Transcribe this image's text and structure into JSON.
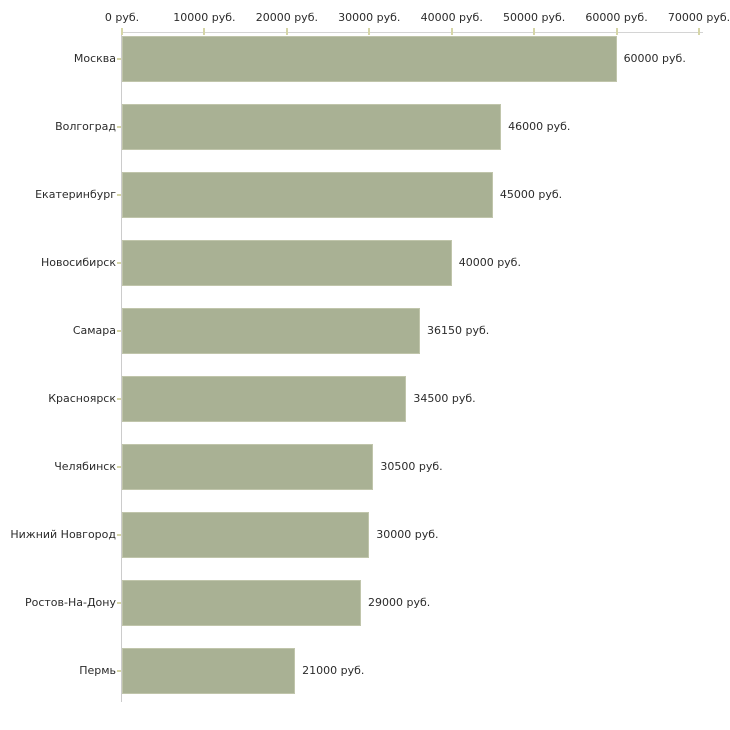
{
  "chart_data": {
    "type": "bar",
    "orientation": "horizontal",
    "title": "",
    "xlabel": "",
    "ylabel": "",
    "xlim": [
      0,
      70000
    ],
    "grid": false,
    "legend": null,
    "axis_position": "top",
    "unit_suffix": " руб.",
    "x_ticks": [
      {
        "value": 0,
        "label": "0 руб."
      },
      {
        "value": 10000,
        "label": "10000 руб."
      },
      {
        "value": 20000,
        "label": "20000 руб."
      },
      {
        "value": 30000,
        "label": "30000 руб."
      },
      {
        "value": 40000,
        "label": "40000 руб."
      },
      {
        "value": 50000,
        "label": "50000 руб."
      },
      {
        "value": 60000,
        "label": "60000 руб."
      },
      {
        "value": 70000,
        "label": "70000 руб."
      }
    ],
    "categories": [
      "Москва",
      "Волгоград",
      "Екатеринбург",
      "Новосибирск",
      "Самара",
      "Красноярск",
      "Челябинск",
      "Нижний Новгород",
      "Ростов-На-Дону",
      "Пермь"
    ],
    "values": [
      60000,
      46000,
      45000,
      40000,
      36150,
      34500,
      30500,
      30000,
      29000,
      21000
    ],
    "value_labels": [
      "60000 руб.",
      "46000 руб.",
      "45000 руб.",
      "40000 руб.",
      "36150 руб.",
      "34500 руб.",
      "30500 руб.",
      "30000 руб.",
      "29000 руб.",
      "21000 руб."
    ],
    "colors": {
      "bar_fill": "#a9b194",
      "bar_border": "#c0c5ab",
      "x_axis_line": "#d4d4d4",
      "y_axis_line": "#cccccc",
      "tick_mark": "#d6d6a8",
      "text": "#2b2b2b",
      "background": "#ffffff"
    }
  }
}
